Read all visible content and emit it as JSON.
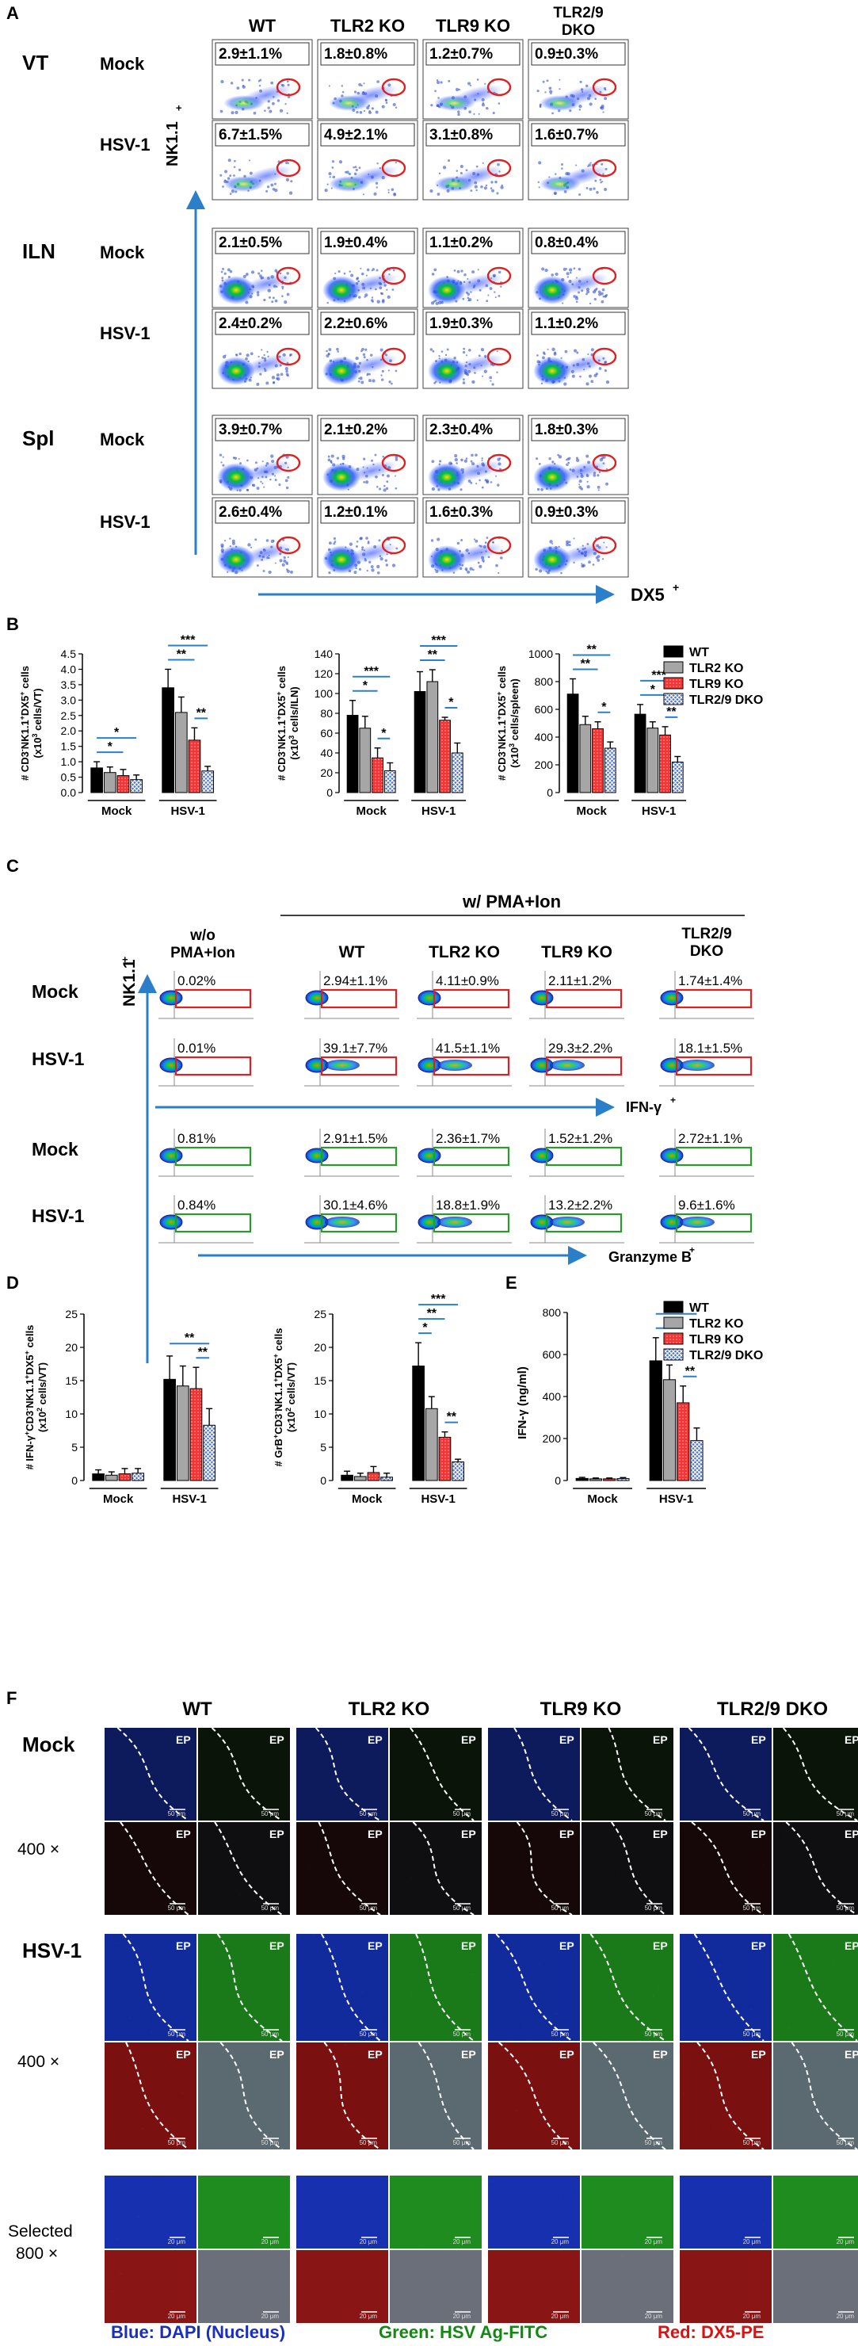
{
  "strains": [
    "WT",
    "TLR2 KO",
    "TLR9 KO",
    "TLR2/9"
  ],
  "strain_tail": "DKO",
  "conditions": [
    "Mock",
    "HSV-1"
  ],
  "panelA": {
    "letter": "A",
    "tissues": [
      "VT",
      "ILN",
      "Spl"
    ],
    "yaxis": "NK1.1",
    "xaxis": "DX5",
    "values": [
      [
        [
          "2.9±1.1%",
          "1.8±0.8%",
          "1.2±0.7%",
          "0.9±0.3%"
        ],
        [
          "6.7±1.5%",
          "4.9±2.1%",
          "3.1±0.8%",
          "1.6±0.7%"
        ]
      ],
      [
        [
          "2.1±0.5%",
          "1.9±0.4%",
          "1.1±0.2%",
          "0.8±0.4%"
        ],
        [
          "2.4±0.2%",
          "2.2±0.6%",
          "1.9±0.3%",
          "1.1±0.2%"
        ]
      ],
      [
        [
          "3.9±0.7%",
          "2.1±0.2%",
          "2.3±0.4%",
          "1.8±0.3%"
        ],
        [
          "2.6±0.4%",
          "1.2±0.1%",
          "1.6±0.3%",
          "0.9±0.3%"
        ]
      ]
    ]
  },
  "panelB": {
    "letter": "B",
    "charts": [
      {
        "ylabel1": "# CD3",
        "ylabel2": "NK1.1",
        "ylabel3": "DX5",
        "ylabel4": " cells",
        "unit": "(x10",
        "unit2": " cells/VT)",
        "yticks": [
          "0.0",
          "0.5",
          "1.0",
          "1.5",
          "2.0",
          "2.5",
          "3.0",
          "3.5",
          "4.0",
          "4.5"
        ],
        "ymax": 4.5,
        "mock": [
          0.8,
          0.65,
          0.55,
          0.42
        ],
        "mock_err": [
          0.2,
          0.18,
          0.2,
          0.15
        ],
        "hsv": [
          3.4,
          2.6,
          1.7,
          0.7
        ],
        "hsv_err": [
          0.6,
          0.5,
          0.4,
          0.15
        ],
        "sig": [
          {
            "g": "mock",
            "a": 0,
            "b": 3,
            "t": "*"
          },
          {
            "g": "mock",
            "a": 0,
            "b": 2,
            "t": "*"
          },
          {
            "g": "hsv",
            "a": 0,
            "b": 3,
            "t": "***"
          },
          {
            "g": "hsv",
            "a": 0,
            "b": 2,
            "t": "**"
          },
          {
            "g": "hsv",
            "a": 2,
            "b": 3,
            "t": "**"
          }
        ]
      },
      {
        "ylabel1": "# CD3",
        "ylabel2": "NK1.1",
        "ylabel3": "DX5",
        "ylabel4": " cells",
        "unit": "(x10",
        "unit2": " cells/ILN)",
        "yticks": [
          "0",
          "20",
          "40",
          "60",
          "80",
          "100",
          "120",
          "140"
        ],
        "ymax": 140,
        "mock": [
          78,
          65,
          35,
          22
        ],
        "mock_err": [
          15,
          12,
          10,
          8
        ],
        "hsv": [
          102,
          112,
          73,
          40
        ],
        "hsv_err": [
          20,
          12,
          3,
          10
        ],
        "sig": [
          {
            "g": "mock",
            "a": 0,
            "b": 3,
            "t": "***"
          },
          {
            "g": "mock",
            "a": 0,
            "b": 2,
            "t": "*"
          },
          {
            "g": "mock",
            "a": 2,
            "b": 3,
            "t": "*"
          },
          {
            "g": "hsv",
            "a": 0,
            "b": 3,
            "t": "***"
          },
          {
            "g": "hsv",
            "a": 0,
            "b": 2,
            "t": "**"
          },
          {
            "g": "hsv",
            "a": 2,
            "b": 3,
            "t": "*"
          }
        ]
      },
      {
        "ylabel1": "# CD3",
        "ylabel2": "NK1.1",
        "ylabel3": "DX5",
        "ylabel4": " cells",
        "unit": "(x10",
        "unit2": " cells/spleen)",
        "yticks": [
          "0",
          "200",
          "400",
          "600",
          "800",
          "1000"
        ],
        "ymax": 1000,
        "mock": [
          710,
          490,
          460,
          320
        ],
        "mock_err": [
          110,
          60,
          50,
          45
        ],
        "hsv": [
          565,
          465,
          415,
          220
        ],
        "hsv_err": [
          70,
          45,
          60,
          40
        ],
        "sig": [
          {
            "g": "mock",
            "a": 0,
            "b": 3,
            "t": "**"
          },
          {
            "g": "mock",
            "a": 0,
            "b": 2,
            "t": "**"
          },
          {
            "g": "mock",
            "a": 2,
            "b": 3,
            "t": "*"
          },
          {
            "g": "hsv",
            "a": 0,
            "b": 3,
            "t": "***"
          },
          {
            "g": "hsv",
            "a": 0,
            "b": 2,
            "t": "*"
          },
          {
            "g": "hsv",
            "a": 2,
            "b": 3,
            "t": "**"
          }
        ]
      }
    ]
  },
  "legend": [
    "WT",
    "TLR2 KO",
    "TLR9 KO",
    "TLR2/9 DKO"
  ],
  "xcats": [
    "Mock",
    "HSV-1"
  ],
  "panelC": {
    "letter": "C",
    "header": "w/ PMA+Ion",
    "wo1": "w/o",
    "wo2": "PMA+Ion",
    "yaxis": "NK1.1",
    "xaxis1": "IFN-γ",
    "xaxis2": "Granzyme B",
    "rows": [
      "Mock",
      "HSV-1",
      "Mock",
      "HSV-1"
    ],
    "values": [
      [
        "0.02%",
        "2.94±1.1%",
        "4.11±0.9%",
        "2.11±1.2%",
        "1.74±1.4%"
      ],
      [
        "0.01%",
        "39.1±7.7%",
        "41.5±1.1%",
        "29.3±2.2%",
        "18.1±1.5%"
      ],
      [
        "0.81%",
        "2.91±1.5%",
        "2.36±1.7%",
        "1.52±1.2%",
        "2.72±1.1%"
      ],
      [
        "0.84%",
        "30.1±4.6%",
        "18.8±1.9%",
        "13.2±2.2%",
        "9.6±1.6%"
      ]
    ]
  },
  "panelD": {
    "letter": "D",
    "charts": [
      {
        "ylabel1": "# IFN-γ",
        "ylabel2": "CD3",
        "ylabel3": "NK1.1",
        "ylabel4": "DX5",
        "ylabel5": " cells",
        "unit": "(x10",
        "unit2": " cells/VT)",
        "yticks": [
          "0",
          "5",
          "10",
          "15",
          "20",
          "25"
        ],
        "ymax": 25,
        "mock": [
          1.0,
          0.8,
          1.0,
          1.1
        ],
        "mock_err": [
          0.6,
          0.5,
          0.8,
          0.7
        ],
        "hsv": [
          15.2,
          14.2,
          13.8,
          8.3
        ],
        "hsv_err": [
          3.5,
          3.0,
          3.2,
          2.5
        ],
        "sig": [
          {
            "g": "hsv",
            "a": 0,
            "b": 3,
            "t": "**"
          },
          {
            "g": "hsv",
            "a": 2,
            "b": 3,
            "t": "**"
          }
        ]
      },
      {
        "ylabel1": "# GrB",
        "ylabel2": "CD3",
        "ylabel3": "NK1.1",
        "ylabel4": "DX5",
        "ylabel5": " cells",
        "unit": "(x10",
        "unit2": " cells/VT)",
        "yticks": [
          "0",
          "5",
          "10",
          "15",
          "20",
          "25"
        ],
        "ymax": 25,
        "mock": [
          0.8,
          0.6,
          1.2,
          0.5
        ],
        "mock_err": [
          0.6,
          0.5,
          0.9,
          0.6
        ],
        "hsv": [
          17.2,
          10.8,
          6.5,
          2.8
        ],
        "hsv_err": [
          3.5,
          1.8,
          0.8,
          0.4
        ],
        "sig": [
          {
            "g": "hsv",
            "a": 0,
            "b": 3,
            "t": "***"
          },
          {
            "g": "hsv",
            "a": 0,
            "b": 2,
            "t": "**"
          },
          {
            "g": "hsv",
            "a": 0,
            "b": 1,
            "t": "*"
          },
          {
            "g": "hsv",
            "a": 2,
            "b": 3,
            "t": "**"
          }
        ]
      }
    ]
  },
  "panelE": {
    "letter": "E",
    "ylabel": "IFN-γ (ng/ml)",
    "yticks": [
      "0",
      "200",
      "400",
      "600",
      "800"
    ],
    "ymax": 800,
    "mock": [
      10,
      8,
      8,
      9
    ],
    "mock_err": [
      5,
      4,
      4,
      5
    ],
    "hsv": [
      570,
      480,
      370,
      190
    ],
    "hsv_err": [
      110,
      70,
      80,
      60
    ],
    "sig": [
      {
        "g": "hsv",
        "a": 0,
        "b": 3,
        "t": "**"
      },
      {
        "g": "hsv",
        "a": 0,
        "b": 2,
        "t": "**"
      },
      {
        "g": "hsv",
        "a": 2,
        "b": 3,
        "t": "**"
      }
    ]
  },
  "panelF": {
    "letter": "F",
    "strains": [
      "WT",
      "TLR2 KO",
      "TLR9 KO",
      "TLR2/9 DKO"
    ],
    "rows": [
      "Mock",
      "400 ×",
      "HSV-1",
      "400 ×",
      "Selected",
      "800 ×"
    ],
    "ep": "EP",
    "scale50": "50 μm",
    "scale20": "20 μm",
    "legend_blue": "Blue: DAPI (Nucleus)",
    "legend_green": "Green: HSV Ag-FITC",
    "legend_red": "Red: DX5-PE"
  },
  "colors": {
    "wt": "#000000",
    "tlr2": "#a6a6a6",
    "tlr9": "#ff3030",
    "dko": "#4a6fd8",
    "arrow": "#2a7fc8",
    "gate_red": "#e02020",
    "gate_green": "#2a9a2a",
    "blue_text": "#1a2fbf",
    "green_text": "#128a12",
    "red_text": "#e01010"
  }
}
